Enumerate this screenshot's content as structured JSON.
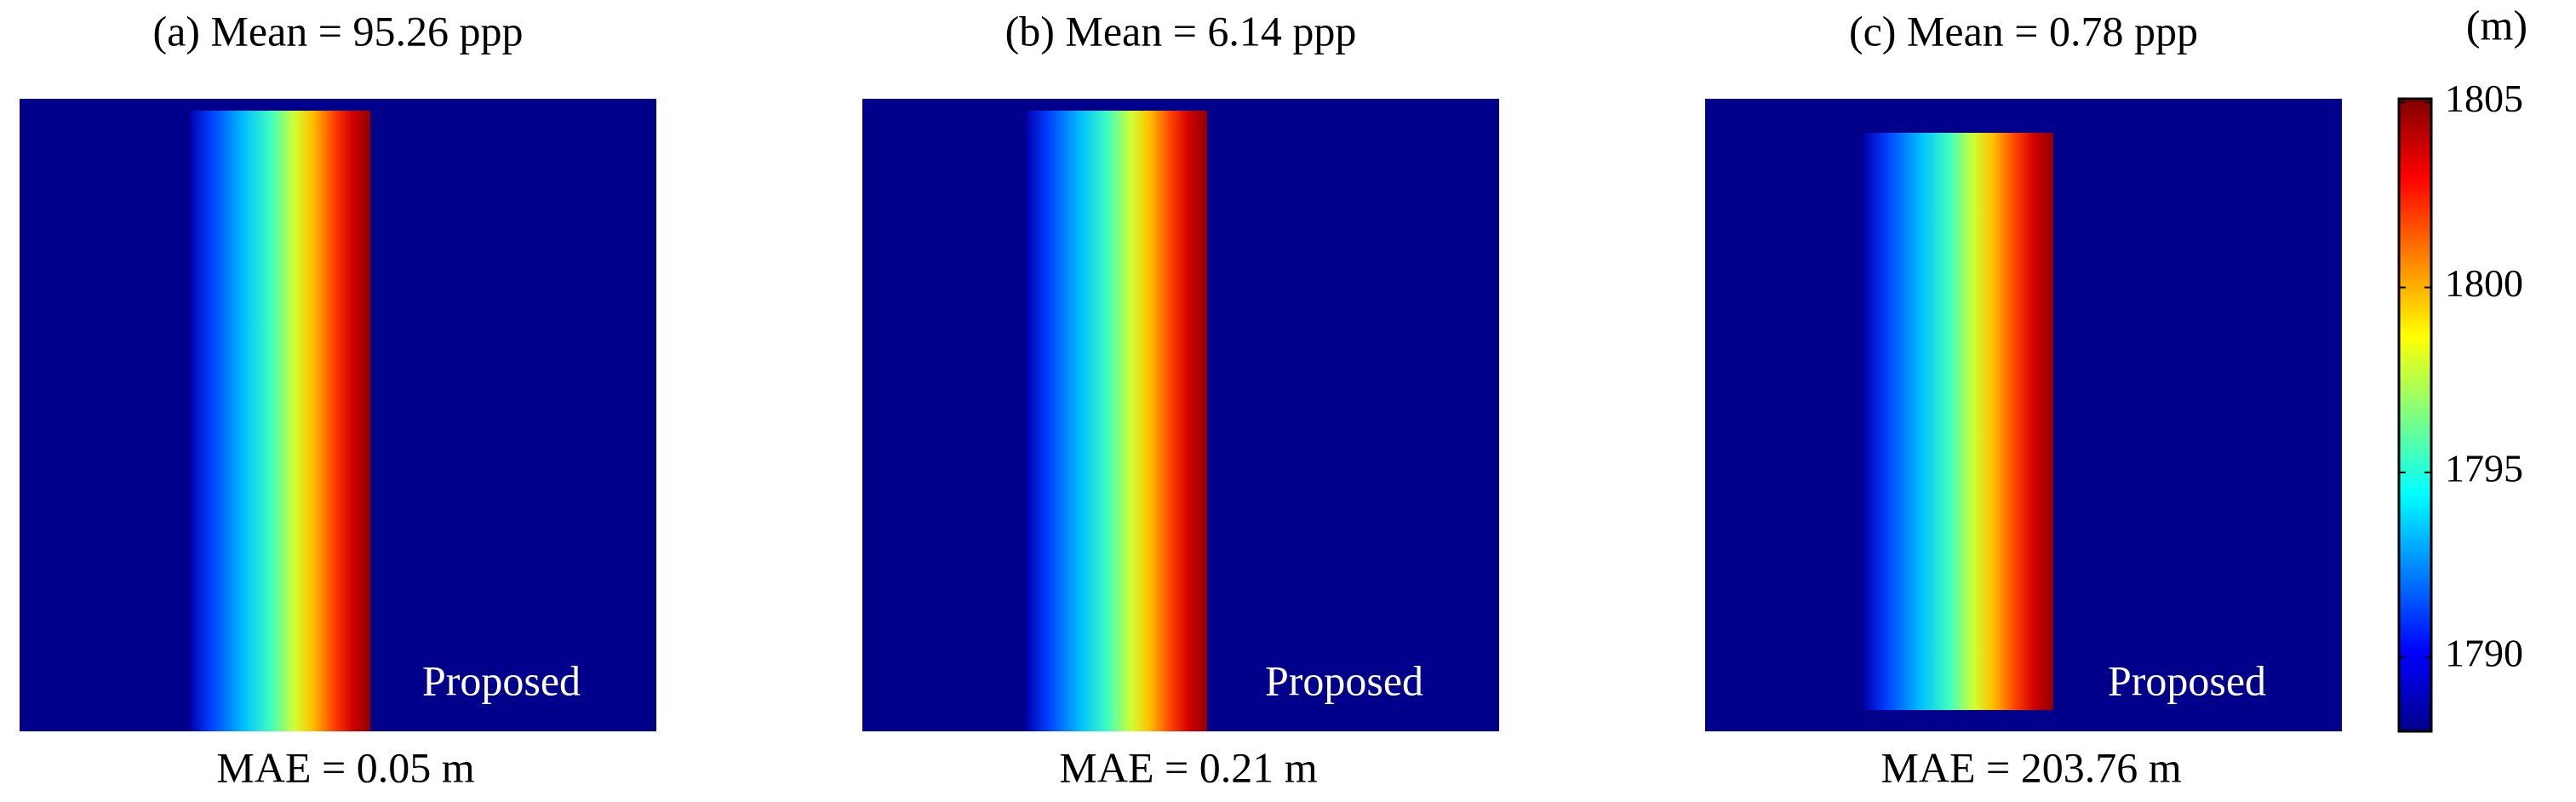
{
  "panels": [
    {
      "title": "(a) Mean = 95.26  ppp",
      "label": "Proposed",
      "caption": "MAE = 0.05 m"
    },
    {
      "title": "(b) Mean = 6.14 ppp",
      "label": "Proposed",
      "caption": "MAE = 0.21 m"
    },
    {
      "title": "(c) Mean = 0.78 ppp",
      "label": "Proposed",
      "caption": "MAE = 203.76 m"
    }
  ],
  "colorbar": {
    "unit": "(m)",
    "lim": [
      1788,
      1805.1
    ],
    "ticks": [
      1790,
      1795,
      1800,
      1805
    ]
  }
}
